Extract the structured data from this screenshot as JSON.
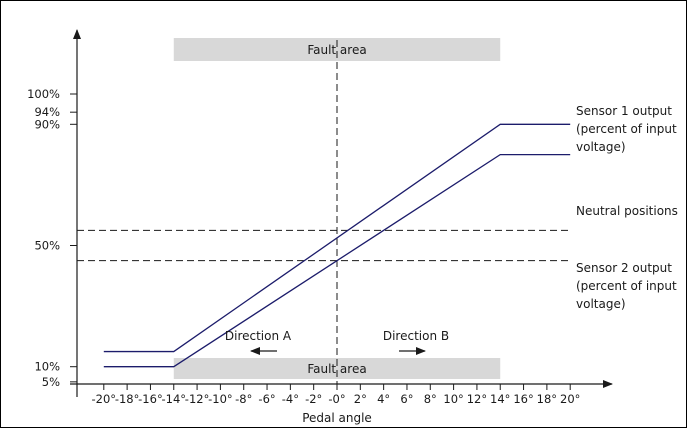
{
  "y_axis": {
    "ticks": [
      {
        "label": "100%",
        "value": 100
      },
      {
        "label": "94%",
        "value": 94
      },
      {
        "label": "90%",
        "value": 90
      },
      {
        "label": "50%",
        "value": 50
      },
      {
        "label": "10%",
        "value": 10
      },
      {
        "label": "5%",
        "value": 5
      }
    ]
  },
  "x_axis": {
    "title": "Pedal angle",
    "ticks": [
      {
        "label": "-20°",
        "value": -20
      },
      {
        "label": "-18°",
        "value": -18
      },
      {
        "label": "-16°",
        "value": -16
      },
      {
        "label": "-14°",
        "value": -14
      },
      {
        "label": "-12°",
        "value": -12
      },
      {
        "label": "-10°",
        "value": -10
      },
      {
        "label": "-8°",
        "value": -8
      },
      {
        "label": "-6°",
        "value": -6
      },
      {
        "label": "-4°",
        "value": -4
      },
      {
        "label": "-2°",
        "value": -2
      },
      {
        "label": "-0°",
        "value": 0
      },
      {
        "label": "2°",
        "value": 2
      },
      {
        "label": "4°",
        "value": 4
      },
      {
        "label": "6°",
        "value": 6
      },
      {
        "label": "8°",
        "value": 8
      },
      {
        "label": "10°",
        "value": 10
      },
      {
        "label": "12°",
        "value": 12
      },
      {
        "label": "14°",
        "value": 14
      },
      {
        "label": "16°",
        "value": 16
      },
      {
        "label": "18°",
        "value": 18
      },
      {
        "label": "20°",
        "value": 20
      }
    ]
  },
  "fault_areas": {
    "top_label": "Fault area",
    "bottom_label": "Fault area",
    "x_range": [
      -14,
      14
    ],
    "color": "#d8d8d8"
  },
  "directions": {
    "a_label": "Direction A",
    "b_label": "Direction B"
  },
  "neutral": {
    "label": "Neutral positions",
    "levels": [
      55,
      45
    ]
  },
  "sensor1": {
    "label_lines": [
      "Sensor 1 output",
      "(percent of input",
      "voltage)"
    ],
    "points": [
      [
        -20,
        15
      ],
      [
        -14,
        15
      ],
      [
        14,
        90
      ],
      [
        20,
        90
      ]
    ]
  },
  "sensor2": {
    "label_lines": [
      "Sensor 2 output",
      "(percent of input",
      "voltage)"
    ],
    "points": [
      [
        -20,
        10
      ],
      [
        -14,
        10
      ],
      [
        14,
        80
      ],
      [
        20,
        80
      ]
    ]
  },
  "line_color": "#1c1c6b"
}
